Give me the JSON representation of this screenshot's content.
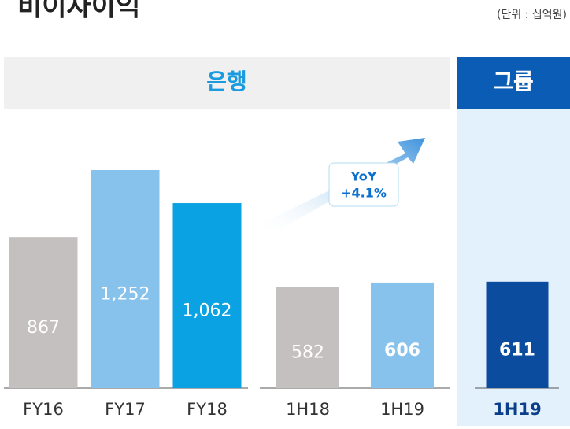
{
  "title": "비이자이익",
  "unit": "(단위 : 십억원)",
  "sections": [
    "은행",
    "그룹"
  ],
  "chart_data": {
    "type": "bar",
    "categories": [
      "FY16",
      "FY17",
      "FY18",
      "1H18",
      "1H19",
      "1H19"
    ],
    "values": [
      867,
      1252,
      1062,
      582,
      606,
      611
    ],
    "value_labels": [
      "867",
      "1,252",
      "1,062",
      "582",
      "606",
      "611"
    ],
    "colors": [
      "#c4c0c0",
      "#86c2ec",
      "#0aa2e2",
      "#c4c0c0",
      "#86c2ec",
      "#0b4c9e"
    ],
    "annotation": [
      "YoY",
      "+4.1%"
    ]
  }
}
